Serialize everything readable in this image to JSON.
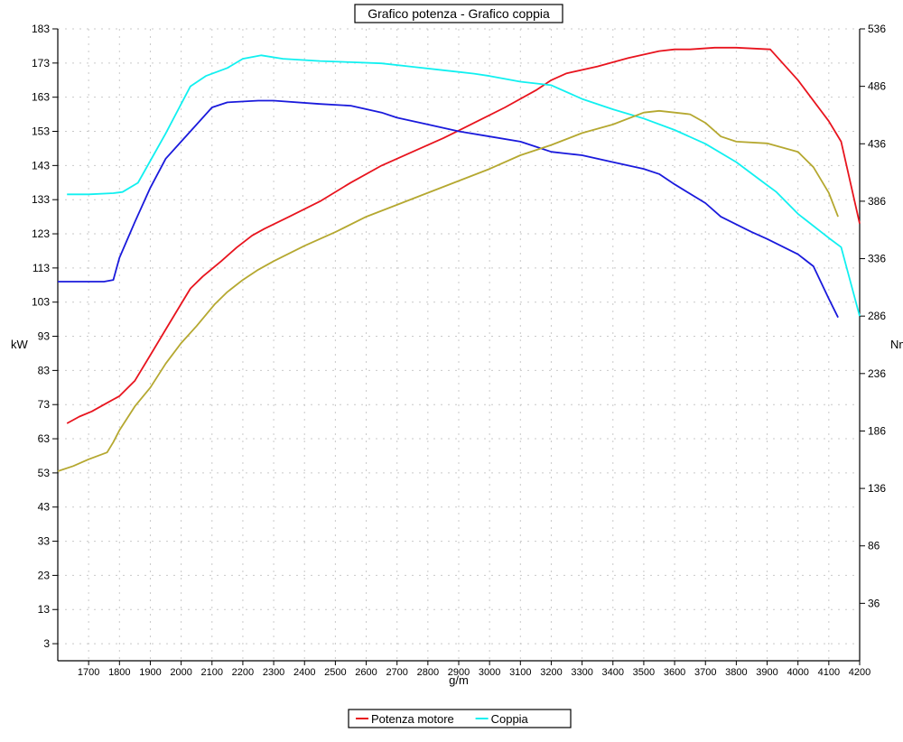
{
  "chart_data": {
    "type": "line",
    "title": "Grafico potenza - Grafico coppia",
    "xlabel": "g/m",
    "ylabel_left": "kW",
    "ylabel_right": "Nm",
    "xlim": [
      1600,
      4200
    ],
    "xticks": [
      1700,
      1800,
      1900,
      2000,
      2100,
      2200,
      2300,
      2400,
      2500,
      2600,
      2700,
      2800,
      2900,
      3000,
      3100,
      3200,
      3300,
      3400,
      3500,
      3600,
      3700,
      3800,
      3900,
      4000,
      4100,
      4200
    ],
    "ylim_left": [
      -2,
      183
    ],
    "yticks_left": [
      3,
      13,
      23,
      33,
      43,
      53,
      63,
      73,
      83,
      93,
      103,
      113,
      123,
      133,
      143,
      153,
      163,
      173,
      183
    ],
    "ylim_right": [
      -14,
      536
    ],
    "yticks_right": [
      36,
      86,
      136,
      186,
      236,
      286,
      336,
      386,
      436,
      486,
      536
    ],
    "grid": true,
    "legend_position": "bottom-center",
    "series": [
      {
        "name": "Potenza motore",
        "axis": "left",
        "color": "#e8141e",
        "x": [
          1630,
          1670,
          1710,
          1760,
          1800,
          1850,
          1900,
          1950,
          2000,
          2030,
          2070,
          2130,
          2180,
          2230,
          2270,
          2350,
          2450,
          2550,
          2650,
          2750,
          2850,
          2950,
          3050,
          3150,
          3200,
          3250,
          3350,
          3450,
          3550,
          3600,
          3650,
          3730,
          3800,
          3910,
          4000,
          4100,
          4140,
          4200
        ],
        "values": [
          67.5,
          69.5,
          71,
          73.5,
          75.5,
          80,
          87.5,
          95,
          102.5,
          107,
          110.5,
          115,
          119,
          122.5,
          124.5,
          128,
          132.5,
          138,
          143,
          147,
          151,
          155.5,
          160,
          165,
          168,
          170,
          172,
          174.5,
          176.5,
          177,
          177,
          177.5,
          177.5,
          177,
          168,
          156,
          150,
          126
        ]
      },
      {
        "name": "Coppia",
        "axis": "right",
        "color": "#11f0f0",
        "x": [
          1630,
          1700,
          1780,
          1810,
          1860,
          1950,
          2030,
          2080,
          2150,
          2200,
          2260,
          2330,
          2450,
          2550,
          2650,
          2750,
          2850,
          2950,
          3000,
          3100,
          3200,
          3300,
          3400,
          3500,
          3600,
          3700,
          3800,
          3900,
          3930,
          4000,
          4100,
          4140,
          4200
        ],
        "values": [
          392,
          392,
          393,
          394,
          402,
          445,
          486,
          495,
          502,
          510,
          513,
          510,
          508,
          507,
          506,
          503,
          500,
          497,
          495,
          490,
          487,
          475,
          466,
          458,
          448,
          436,
          420,
          400,
          394,
          375,
          354,
          346,
          286
        ]
      },
      {
        "name": "",
        "axis": "left",
        "color": "#1a1adc",
        "x": [
          1600,
          1630,
          1680,
          1750,
          1780,
          1800,
          1850,
          1900,
          1950,
          2000,
          2100,
          2150,
          2250,
          2300,
          2450,
          2550,
          2650,
          2700,
          2800,
          2900,
          3000,
          3100,
          3150,
          3200,
          3250,
          3300,
          3400,
          3500,
          3550,
          3600,
          3700,
          3750,
          3850,
          3900,
          4000,
          4050,
          4100,
          4130
        ],
        "values": [
          109,
          109,
          109,
          109,
          109.5,
          116,
          126.5,
          136.5,
          145,
          150,
          160,
          161.5,
          162,
          162,
          161,
          160.5,
          158.5,
          157,
          155,
          153,
          151.5,
          150,
          148.5,
          147,
          146.5,
          146,
          144,
          142,
          140.5,
          137.5,
          132,
          128,
          123.5,
          121.5,
          117,
          113.5,
          104,
          98.5
        ]
      },
      {
        "name": "",
        "axis": "left",
        "color": "#b5a830",
        "x": [
          1600,
          1650,
          1700,
          1760,
          1780,
          1800,
          1850,
          1900,
          1950,
          2000,
          2050,
          2110,
          2150,
          2200,
          2250,
          2300,
          2400,
          2500,
          2600,
          2700,
          2800,
          2900,
          3000,
          3100,
          3200,
          3300,
          3400,
          3500,
          3550,
          3600,
          3650,
          3700,
          3750,
          3800,
          3900,
          4000,
          4050,
          4100,
          4130
        ],
        "values": [
          53.5,
          55,
          57,
          59,
          62,
          65.5,
          72.5,
          78,
          85,
          91,
          96,
          102.5,
          106,
          109.5,
          112.5,
          115,
          119.5,
          123.5,
          128,
          131.5,
          135,
          138.5,
          142,
          146,
          149,
          152.5,
          155,
          158.5,
          159,
          158.5,
          158,
          155.5,
          151.5,
          150,
          149.5,
          147,
          142.5,
          135,
          128
        ]
      }
    ]
  }
}
